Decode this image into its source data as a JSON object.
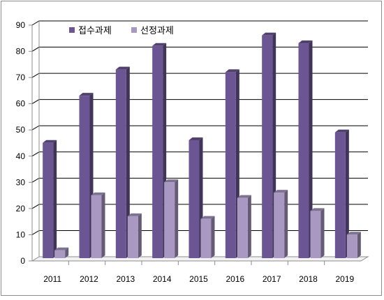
{
  "chart_data": {
    "type": "bar",
    "categories": [
      "2011",
      "2012",
      "2013",
      "2014",
      "2015",
      "2016",
      "2017",
      "2018",
      "2019"
    ],
    "series": [
      {
        "name": "접수과제",
        "values": [
          44,
          62,
          72,
          81,
          45,
          71,
          85,
          82,
          48
        ],
        "color": "#6b5693"
      },
      {
        "name": "선정과제",
        "values": [
          3,
          24,
          16,
          29,
          15,
          23,
          25,
          18,
          9
        ],
        "color": "#a898c2"
      }
    ],
    "ylim": [
      0,
      90
    ],
    "yticks": [
      "0",
      "10",
      "20",
      "30",
      "40",
      "50",
      "60",
      "70",
      "80",
      "90"
    ],
    "title": "",
    "xlabel": "",
    "ylabel": "",
    "grid": true,
    "legend_position": "top-left",
    "style": "3d-column"
  }
}
